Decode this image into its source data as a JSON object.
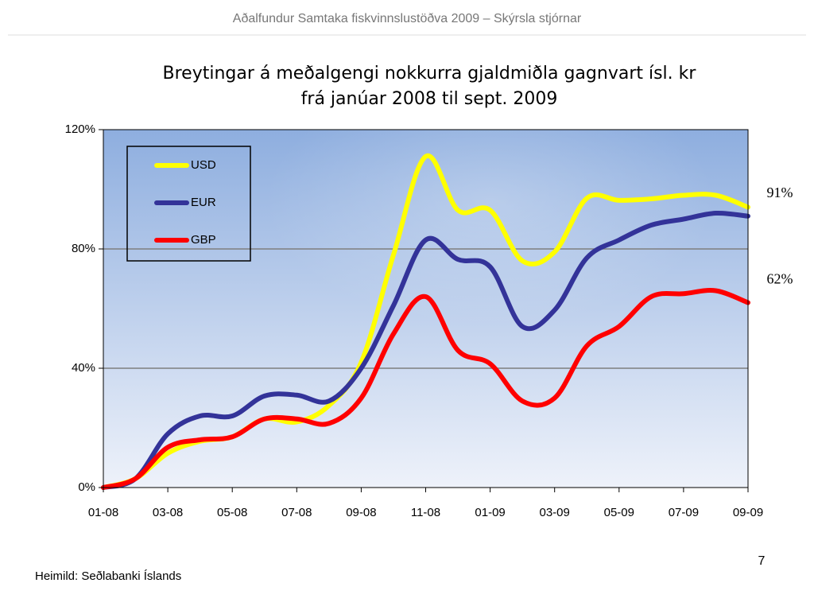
{
  "header": "Aðalfundur Samtaka fiskvinnslustöðva 2009 – Skýrsla stjórnar",
  "footer": {
    "source": "Heimild: Seðlabanki Íslands",
    "page_number": "7"
  },
  "chart_data": {
    "type": "line",
    "title": [
      "Breytingar á meðalgengi nokkurra gjaldmiðla gagnvart ísl. kr",
      "frá janúar 2008 til sept. 2009"
    ],
    "categories": [
      "01-08",
      null,
      "03-08",
      null,
      "05-08",
      null,
      "07-08",
      null,
      "09-08",
      null,
      "11-08",
      null,
      "01-09",
      null,
      "03-09",
      null,
      "05-09",
      null,
      "07-09",
      null,
      "09-09"
    ],
    "series": [
      {
        "name": "USD",
        "color": "#ffff00",
        "values": [
          0,
          3,
          11.5,
          15.5,
          17,
          23,
          22,
          27.5,
          42,
          78,
          111,
          93,
          93,
          76,
          79,
          97,
          96.3,
          96.8,
          98,
          98,
          94
        ]
      },
      {
        "name": "EUR",
        "color": "#333399",
        "values": [
          0,
          3,
          18,
          24,
          24,
          30.7,
          31,
          29,
          40,
          61,
          83,
          76.5,
          74,
          54,
          59.5,
          77,
          83,
          88,
          90,
          92,
          91
        ],
        "value_labels": [
          null,
          null,
          null,
          null,
          null,
          null,
          null,
          null,
          null,
          null,
          null,
          null,
          null,
          null,
          null,
          null,
          null,
          null,
          null,
          null,
          "91%"
        ]
      },
      {
        "name": "GBP",
        "color": "#ff0000",
        "values": [
          0,
          3,
          13.5,
          16,
          17,
          23,
          23,
          21.5,
          30,
          51.5,
          64,
          46,
          41.5,
          29,
          30,
          47.5,
          54,
          64,
          65,
          66,
          62
        ],
        "value_labels": [
          null,
          null,
          null,
          null,
          null,
          null,
          null,
          null,
          null,
          null,
          null,
          null,
          null,
          null,
          null,
          null,
          null,
          null,
          null,
          null,
          "62%"
        ]
      }
    ],
    "ylim": [
      0,
      120
    ],
    "yticks": [
      {
        "value": 0,
        "label": "0%"
      },
      {
        "value": 40,
        "label": "40%"
      },
      {
        "value": 80,
        "label": "80%"
      },
      {
        "value": 120,
        "label": "120%"
      }
    ],
    "grid": true,
    "legend": "upper left"
  }
}
